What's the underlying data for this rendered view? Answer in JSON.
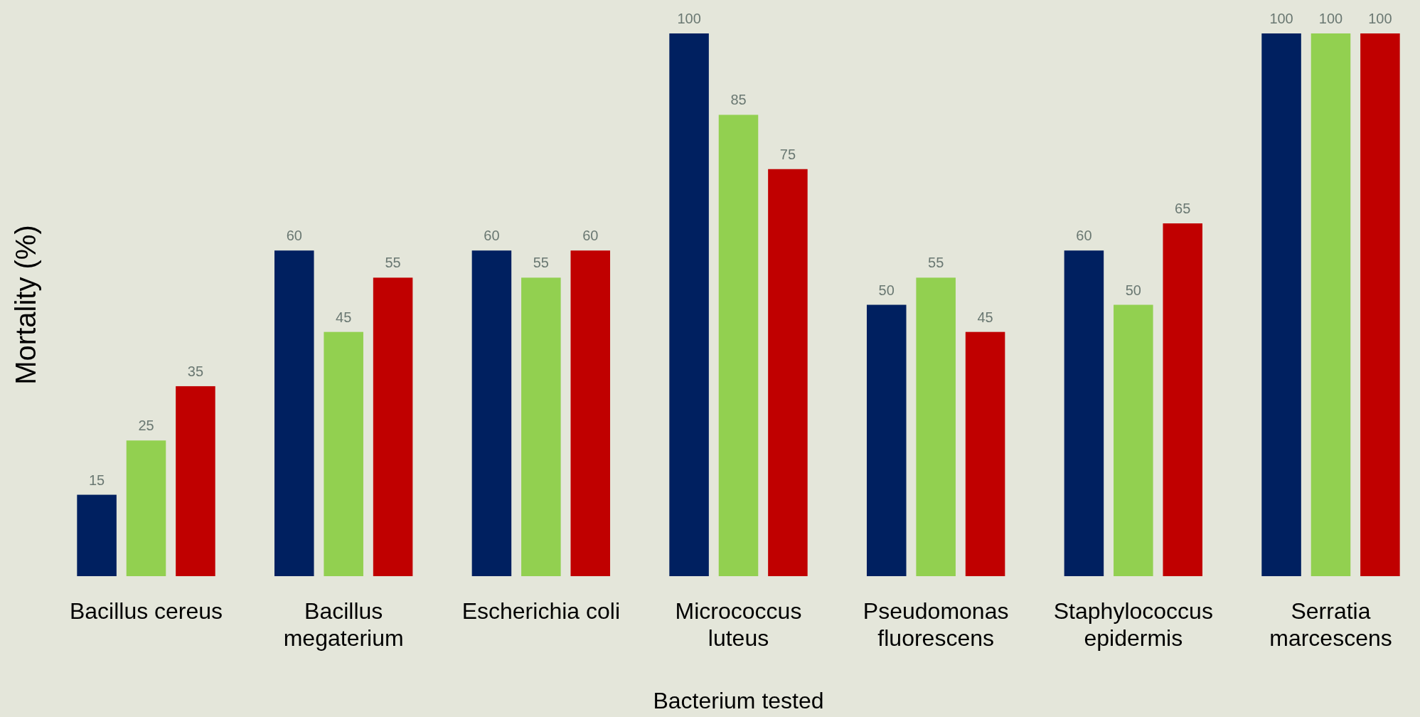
{
  "chart_data": {
    "type": "bar",
    "xlabel": "Bacterium tested",
    "ylabel": "Mortality (%)",
    "categories": [
      "Bacillus cereus",
      "Bacillus megaterium",
      "Escherichia coli",
      "Micrococcus luteus",
      "Pseudomonas fluorescens",
      "Staphylococcus epidermis",
      "Serratia marcescens"
    ],
    "series": [
      {
        "color": "#002060",
        "values": [
          15,
          60,
          60,
          100,
          50,
          60,
          100
        ]
      },
      {
        "color": "#92d050",
        "values": [
          25,
          45,
          55,
          85,
          55,
          50,
          100
        ]
      },
      {
        "color": "#c00000",
        "values": [
          35,
          55,
          60,
          75,
          45,
          65,
          100
        ]
      }
    ],
    "ylim": [
      0,
      100
    ],
    "tick_labels": "x",
    "data_labels": true
  }
}
